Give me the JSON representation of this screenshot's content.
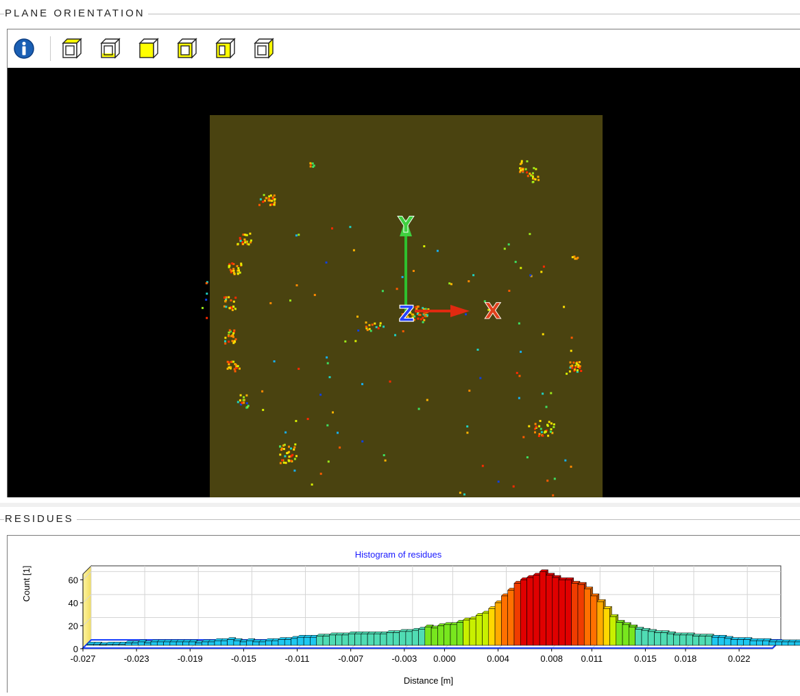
{
  "plane_orientation": {
    "title": "PLANE ORIENTATION",
    "toolbar": {
      "info_icon": "info-icon",
      "view_icons": [
        "cube-top-view-icon",
        "cube-bottom-view-icon",
        "cube-front-view-icon",
        "cube-back-view-icon",
        "cube-left-view-icon",
        "cube-right-view-icon"
      ],
      "highlight_color": "#ffff00"
    },
    "view": {
      "background_color": "#000000",
      "plane_color": "#4a4310",
      "axes": [
        {
          "name": "Y",
          "label": "Y",
          "color": "#3fd03f"
        },
        {
          "name": "X",
          "label": "X",
          "color": "#e0401c"
        },
        {
          "name": "Z",
          "label": "Z",
          "color": "#2440ff"
        }
      ]
    }
  },
  "residues": {
    "title": "RESIDUES",
    "chart_data": {
      "type": "bar",
      "title": "Histogram of residues",
      "xlabel": "Distance [m]",
      "ylabel": "Count [1]",
      "x_tick_labels": [
        "-0.027",
        "-0.023",
        "-0.019",
        "-0.015",
        "-0.011",
        "-0.007",
        "-0.003",
        "0.000",
        "0.004",
        "0.008",
        "0.011",
        "0.015",
        "0.018",
        "0.022"
      ],
      "y_tick_labels": [
        "0",
        "20",
        "40",
        "60"
      ],
      "ylim": [
        0,
        65
      ],
      "xlim": [
        -0.027,
        0.0245
      ],
      "grid": true,
      "bar_width": 0.000476,
      "counts": [
        1,
        1,
        0,
        1,
        1,
        1,
        2,
        2,
        3,
        2,
        3,
        3,
        3,
        3,
        3,
        3,
        3,
        2,
        3,
        3,
        4,
        4,
        5,
        4,
        3,
        4,
        3,
        3,
        4,
        4,
        5,
        5,
        6,
        7,
        7,
        7,
        8,
        8,
        9,
        9,
        9,
        10,
        10,
        10,
        10,
        10,
        10,
        11,
        11,
        12,
        12,
        13,
        14,
        16,
        15,
        17,
        18,
        18,
        20,
        22,
        23,
        26,
        28,
        32,
        37,
        43,
        48,
        54,
        57,
        59,
        61,
        64,
        61,
        59,
        57,
        57,
        54,
        53,
        49,
        43,
        38,
        32,
        25,
        20,
        18,
        16,
        14,
        13,
        12,
        11,
        11,
        10,
        9,
        9,
        9,
        8,
        8,
        8,
        7,
        7,
        6,
        5,
        5,
        5,
        4,
        4,
        4,
        3,
        3,
        3,
        3,
        3,
        3,
        3,
        3,
        4,
        3,
        2,
        1,
        1
      ],
      "colors": [
        "#1ec8f0",
        "#50dcb4",
        "#78e61e",
        "#c8f000",
        "#ffd700",
        "#ffaa00",
        "#ff7000",
        "#f03c00",
        "#e00000"
      ]
    }
  }
}
